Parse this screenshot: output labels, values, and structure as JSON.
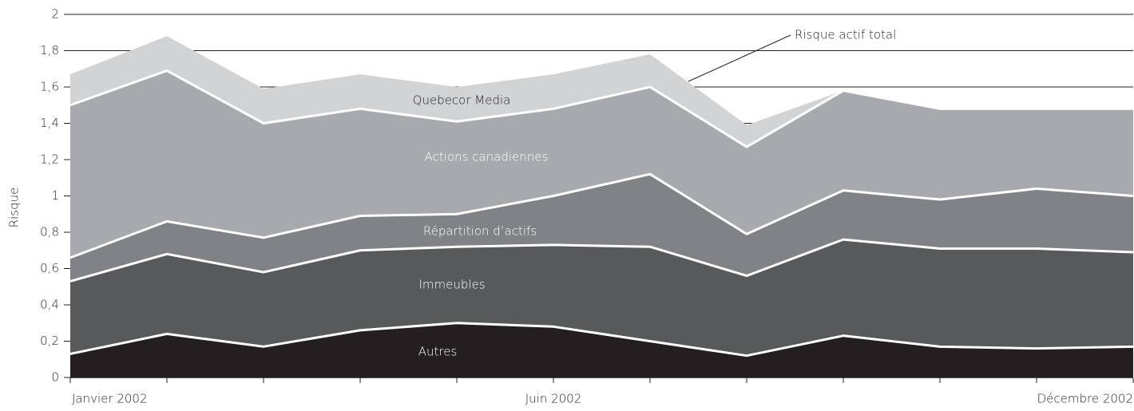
{
  "chart_data": {
    "type": "stacked_area",
    "y_label": "Risque",
    "annotation": "Risque actif total",
    "categories": [
      "Janvier 2002",
      null,
      null,
      null,
      null,
      "Juin 2002",
      null,
      null,
      null,
      null,
      null,
      "Décembre 2002"
    ],
    "series": [
      {
        "name": "Autres",
        "color": "#231f20",
        "values": [
          0.13,
          0.24,
          0.17,
          0.26,
          0.3,
          0.28,
          0.2,
          0.12,
          0.23,
          0.17,
          0.16,
          0.17
        ]
      },
      {
        "name": "Immeubles",
        "color": "#58595b",
        "values": [
          0.4,
          0.44,
          0.41,
          0.44,
          0.42,
          0.45,
          0.52,
          0.44,
          0.53,
          0.54,
          0.55,
          0.52
        ]
      },
      {
        "name": "Répartition d’actifs",
        "color": "#808285",
        "values": [
          0.13,
          0.18,
          0.19,
          0.19,
          0.18,
          0.27,
          0.4,
          0.23,
          0.27,
          0.27,
          0.33,
          0.31
        ]
      },
      {
        "name": "Actions canadiennes",
        "color": "#a7a9ac",
        "values": [
          0.84,
          0.83,
          0.63,
          0.59,
          0.51,
          0.48,
          0.48,
          0.48,
          0.55,
          0.5,
          0.44,
          0.48
        ]
      },
      {
        "name": "Quebecor Media",
        "color": "#d1d3d4",
        "values": [
          0.17,
          0.19,
          0.19,
          0.19,
          0.19,
          0.19,
          0.18,
          0.12,
          0,
          0,
          0,
          0
        ]
      }
    ],
    "ylim": [
      0,
      2
    ],
    "yticks": [
      0,
      {
        "value": 0.2,
        "label": "0,2"
      },
      {
        "value": 0.4,
        "label": "0,4"
      },
      {
        "value": 0.6,
        "label": "0,6"
      },
      {
        "value": 0.8,
        "label": "0,8"
      },
      1,
      {
        "value": 1.2,
        "label": "1,2"
      },
      {
        "value": 1.4,
        "label": "1,4"
      },
      {
        "value": 1.6,
        "label": "1,6"
      },
      {
        "value": 1.8,
        "label": "1,8"
      },
      2
    ],
    "grid": true
  }
}
